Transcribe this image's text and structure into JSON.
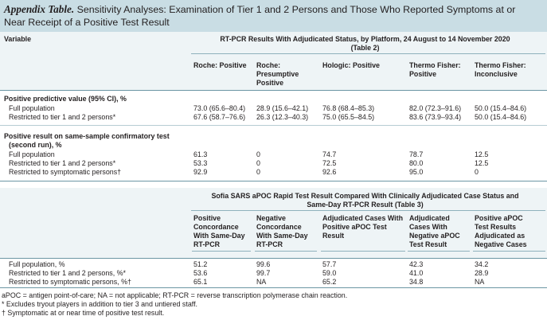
{
  "title": {
    "label": "Appendix Table.",
    "text": " Sensitivity Analyses: Examination of Tier 1 and 2 Persons and Those Who Reported Symptoms at or Near Receipt of a Positive Test Result"
  },
  "variable_header": "Variable",
  "table2": {
    "title_line1": "RT-PCR Results With Adjudicated Status, by Platform, 24 August to 14 November 2020",
    "title_line2": "(Table 2)",
    "columns": [
      [
        "Roche: Positive"
      ],
      [
        "Roche:",
        "Presumptive",
        "Positive"
      ],
      [
        "Hologic: Positive"
      ],
      [
        "Thermo Fisher:",
        "Positive"
      ],
      [
        "Thermo Fisher:",
        "Inconclusive"
      ]
    ],
    "section1_title": "Positive predictive value (95% CI), %",
    "section1_rows": [
      {
        "label": "Full population",
        "values": [
          "73.0 (65.6–80.4)",
          "28.9 (15.6–42.1)",
          "76.8 (68.4–85.3)",
          "82.0 (72.3–91.6)",
          "50.0 (15.4–84.6)"
        ]
      },
      {
        "label": "Restricted to tier 1 and 2 persons*",
        "values": [
          "67.6 (58.7–76.6)",
          "26.3 (12.3–40.3)",
          "75.0 (65.5–84.5)",
          "83.6 (73.9–93.4)",
          "50.0 (15.4–84.6)"
        ]
      }
    ],
    "section2_title_line1": "Positive result on same-sample confirmatory test",
    "section2_title_line2": "(second run), %",
    "section2_rows": [
      {
        "label": "Full population",
        "values": [
          "61.3",
          "0",
          "74.7",
          "78.7",
          "12.5"
        ]
      },
      {
        "label": "Restricted to tier 1 and 2 persons*",
        "values": [
          "53.3",
          "0",
          "72.5",
          "80.0",
          "12.5"
        ]
      },
      {
        "label": "Restricted to symptomatic persons†",
        "values": [
          "92.9",
          "0",
          "92.6",
          "95.0",
          "0"
        ]
      }
    ]
  },
  "table3": {
    "title_line1": "Sofia SARS aPOC Rapid Test Result Compared With Clinically Adjudicated Case Status and",
    "title_line2": "Same-Day RT-PCR Result (Table 3)",
    "columns": [
      [
        "Positive",
        "Concordance",
        "With Same-Day",
        "RT-PCR"
      ],
      [
        "Negative",
        "Concordance",
        "With Same-Day",
        "RT-PCR"
      ],
      [
        "Adjudicated Cases With",
        "Positive aPOC Test",
        "Result"
      ],
      [
        "Adjudicated",
        "Cases With",
        "Negative aPOC",
        "Test Result"
      ],
      [
        "Positive aPOC",
        "Test Results",
        "Adjudicated as",
        "Negative Cases"
      ]
    ],
    "rows": [
      {
        "label": "Full population, %",
        "values": [
          "51.2",
          "99.6",
          "57.7",
          "42.3",
          "34.2"
        ]
      },
      {
        "label": "Restricted to tier 1 and 2 persons, %*",
        "values": [
          "53.6",
          "99.7",
          "59.0",
          "41.0",
          "28.9"
        ]
      },
      {
        "label": "Restricted to symptomatic persons, %†",
        "values": [
          "65.1",
          "NA",
          "65.2",
          "34.8",
          "NA"
        ]
      }
    ]
  },
  "footnotes": [
    "aPOC = antigen point-of-care; NA = not applicable; RT-PCR = reverse transcription polymerase chain reaction.",
    "* Excludes tryout players in addition to tier 3 and untiered staff.",
    "† Symptomatic at or near time of positive test result."
  ]
}
